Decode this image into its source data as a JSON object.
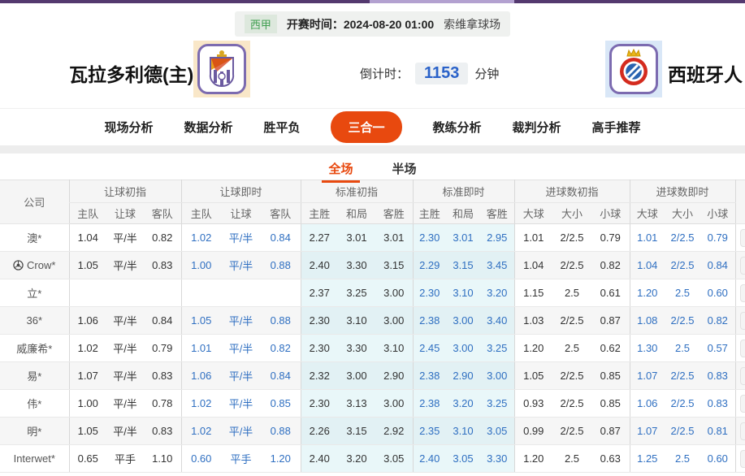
{
  "colors": {
    "accent": "#e8490f",
    "live_blue": "#2f6fc1",
    "countdown_blue": "#2a62c9",
    "league_green": "#3f9e50",
    "strip_purple": "#54396f",
    "strip_light": "#b3a1d0",
    "cyan_column": "#e9f7f9",
    "stripe_row": "#f6f6f6"
  },
  "match_info": {
    "league": "西甲",
    "kickoff": "开赛时间：2024-08-20 01:00",
    "venue": "索维拿球场"
  },
  "header": {
    "home_team": "瓦拉多利德(主)",
    "away_team": "西班牙人",
    "countdown_label": "倒计时：",
    "countdown_value": "1153",
    "countdown_unit": "分钟",
    "home_logo": "valladolid-crest-icon",
    "away_logo": "espanyol-crest-icon"
  },
  "nav": {
    "items": [
      {
        "label": "现场分析",
        "active": false
      },
      {
        "label": "数据分析",
        "active": false
      },
      {
        "label": "胜平负",
        "active": false
      },
      {
        "label": "三合一",
        "active": true
      },
      {
        "label": "教练分析",
        "active": false
      },
      {
        "label": "裁判分析",
        "active": false
      },
      {
        "label": "高手推荐",
        "active": false
      }
    ]
  },
  "sub_tabs": [
    {
      "label": "全场",
      "active": true
    },
    {
      "label": "半场",
      "active": false
    }
  ],
  "table": {
    "company_header": "公司",
    "groups": [
      {
        "label": "让球初指",
        "key": "handicap_initial",
        "cols": [
          "主队",
          "让球",
          "客队"
        ],
        "live": false,
        "cyan": false
      },
      {
        "label": "让球即时",
        "key": "handicap_live",
        "cols": [
          "主队",
          "让球",
          "客队"
        ],
        "live": true,
        "cyan": false
      },
      {
        "label": "标准初指",
        "key": "std_initial",
        "cols": [
          "主胜",
          "和局",
          "客胜"
        ],
        "live": false,
        "cyan": true
      },
      {
        "label": "标准即时",
        "key": "std_live",
        "cols": [
          "主胜",
          "和局",
          "客胜"
        ],
        "live": true,
        "cyan": true
      },
      {
        "label": "进球数初指",
        "key": "goals_initial",
        "cols": [
          "大球",
          "大小",
          "小球"
        ],
        "live": false,
        "cyan": false
      },
      {
        "label": "进球数即时",
        "key": "goals_live",
        "cols": [
          "大球",
          "大小",
          "小球"
        ],
        "live": true,
        "cyan": false
      }
    ],
    "rows": [
      {
        "company": "澳*",
        "icon": null,
        "handicap_initial": [
          "1.04",
          "平/半",
          "0.82"
        ],
        "handicap_live": [
          "1.02",
          "平/半",
          "0.84"
        ],
        "std_initial": [
          "2.27",
          "3.01",
          "3.01"
        ],
        "std_live": [
          "2.30",
          "3.01",
          "2.95"
        ],
        "goals_initial": [
          "1.01",
          "2/2.5",
          "0.79"
        ],
        "goals_live": [
          "1.01",
          "2/2.5",
          "0.79"
        ]
      },
      {
        "company": "Crow*",
        "icon": "football-icon",
        "handicap_initial": [
          "1.05",
          "平/半",
          "0.83"
        ],
        "handicap_live": [
          "1.00",
          "平/半",
          "0.88"
        ],
        "std_initial": [
          "2.40",
          "3.30",
          "3.15"
        ],
        "std_live": [
          "2.29",
          "3.15",
          "3.45"
        ],
        "goals_initial": [
          "1.04",
          "2/2.5",
          "0.82"
        ],
        "goals_live": [
          "1.04",
          "2/2.5",
          "0.84"
        ]
      },
      {
        "company": "立*",
        "icon": null,
        "handicap_initial": [
          "",
          "",
          ""
        ],
        "handicap_live": [
          "",
          "",
          ""
        ],
        "std_initial": [
          "2.37",
          "3.25",
          "3.00"
        ],
        "std_live": [
          "2.30",
          "3.10",
          "3.20"
        ],
        "goals_initial": [
          "1.15",
          "2.5",
          "0.61"
        ],
        "goals_live": [
          "1.20",
          "2.5",
          "0.60"
        ]
      },
      {
        "company": "36*",
        "icon": null,
        "handicap_initial": [
          "1.06",
          "平/半",
          "0.84"
        ],
        "handicap_live": [
          "1.05",
          "平/半",
          "0.88"
        ],
        "std_initial": [
          "2.30",
          "3.10",
          "3.00"
        ],
        "std_live": [
          "2.38",
          "3.00",
          "3.40"
        ],
        "goals_initial": [
          "1.03",
          "2/2.5",
          "0.87"
        ],
        "goals_live": [
          "1.08",
          "2/2.5",
          "0.82"
        ]
      },
      {
        "company": "威廉希*",
        "icon": null,
        "handicap_initial": [
          "1.02",
          "平/半",
          "0.79"
        ],
        "handicap_live": [
          "1.01",
          "平/半",
          "0.82"
        ],
        "std_initial": [
          "2.30",
          "3.30",
          "3.10"
        ],
        "std_live": [
          "2.45",
          "3.00",
          "3.25"
        ],
        "goals_initial": [
          "1.20",
          "2.5",
          "0.62"
        ],
        "goals_live": [
          "1.30",
          "2.5",
          "0.57"
        ]
      },
      {
        "company": "易*",
        "icon": null,
        "handicap_initial": [
          "1.07",
          "平/半",
          "0.83"
        ],
        "handicap_live": [
          "1.06",
          "平/半",
          "0.84"
        ],
        "std_initial": [
          "2.32",
          "3.00",
          "2.90"
        ],
        "std_live": [
          "2.38",
          "2.90",
          "3.00"
        ],
        "goals_initial": [
          "1.05",
          "2/2.5",
          "0.85"
        ],
        "goals_live": [
          "1.07",
          "2/2.5",
          "0.83"
        ]
      },
      {
        "company": "伟*",
        "icon": null,
        "handicap_initial": [
          "1.00",
          "平/半",
          "0.78"
        ],
        "handicap_live": [
          "1.02",
          "平/半",
          "0.85"
        ],
        "std_initial": [
          "2.30",
          "3.13",
          "3.00"
        ],
        "std_live": [
          "2.38",
          "3.20",
          "3.25"
        ],
        "goals_initial": [
          "0.93",
          "2/2.5",
          "0.85"
        ],
        "goals_live": [
          "1.06",
          "2/2.5",
          "0.83"
        ]
      },
      {
        "company": "明*",
        "icon": null,
        "handicap_initial": [
          "1.05",
          "平/半",
          "0.83"
        ],
        "handicap_live": [
          "1.02",
          "平/半",
          "0.88"
        ],
        "std_initial": [
          "2.26",
          "3.15",
          "2.92"
        ],
        "std_live": [
          "2.35",
          "3.10",
          "3.05"
        ],
        "goals_initial": [
          "0.99",
          "2/2.5",
          "0.87"
        ],
        "goals_live": [
          "1.07",
          "2/2.5",
          "0.81"
        ]
      },
      {
        "company": "Interwet*",
        "icon": null,
        "handicap_initial": [
          "0.65",
          "平手",
          "1.10"
        ],
        "handicap_live": [
          "0.60",
          "平手",
          "1.20"
        ],
        "std_initial": [
          "2.40",
          "3.20",
          "3.05"
        ],
        "std_live": [
          "2.40",
          "3.05",
          "3.30"
        ],
        "goals_initial": [
          "1.20",
          "2.5",
          "0.63"
        ],
        "goals_live": [
          "1.25",
          "2.5",
          "0.60"
        ]
      }
    ]
  }
}
